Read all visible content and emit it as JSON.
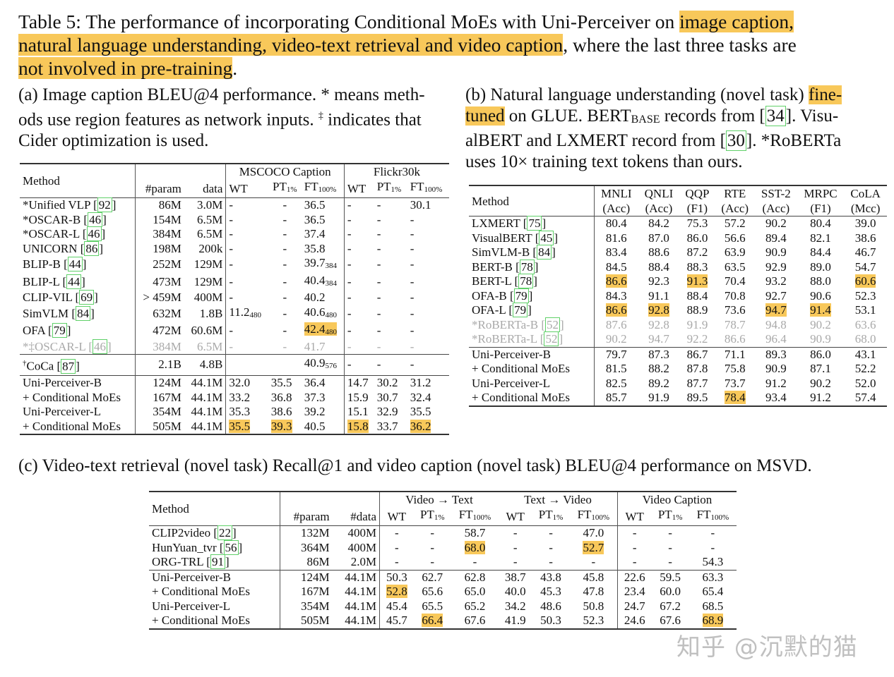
{
  "caption": {
    "prefix": "Table 5: The performance of incorporating Conditional MoEs with Uni-Perceiver on ",
    "highlight1": "image caption,",
    "line2_highlight": "natural language understanding, video-text retrieval and video caption",
    "line2_rest": ", where the last three tasks are",
    "line3_highlight": "not involved in pre-training",
    "line3_rest": "."
  },
  "table_a": {
    "caption_l1": "(a) Image caption BLEU@4 performance. * means meth-",
    "caption_l2a": "ods use region features as network inputs. ",
    "caption_l2_dagger": "‡",
    "caption_l2b": " indicates that",
    "caption_l3": "Cider optimization is used.",
    "headers": {
      "method": "Method",
      "param": "#param",
      "data": "data",
      "group1": "MSCOCO Caption",
      "group2": "Flickr30k",
      "wt": "WT",
      "pt": "PT",
      "pt_sub": "1%",
      "ft": "FT",
      "ft_sub": "100%"
    },
    "rows": [
      {
        "method": "*Unified VLP ",
        "cite": "92",
        "param": "86M",
        "data": "3.0M",
        "c": [
          "-",
          "-",
          "36.5",
          "-",
          "-",
          "30.1"
        ]
      },
      {
        "method": "*OSCAR-B ",
        "cite": "46",
        "param": "154M",
        "data": "6.5M",
        "c": [
          "-",
          "-",
          "36.5",
          "-",
          "-",
          "-"
        ]
      },
      {
        "method": "*OSCAR-L ",
        "cite": "46",
        "param": "384M",
        "data": "6.5M",
        "c": [
          "-",
          "-",
          "37.4",
          "-",
          "-",
          "-"
        ]
      },
      {
        "method": "UNICORN ",
        "cite": "86",
        "param": "198M",
        "data": "200k",
        "c": [
          "-",
          "-",
          "35.8",
          "-",
          "-",
          "-"
        ]
      },
      {
        "method": "BLIP-B ",
        "cite": "44",
        "param": "252M",
        "data": "129M",
        "c": [
          "-",
          "-",
          "39.7",
          "-",
          "-",
          "-"
        ],
        "sub": {
          "2": "384"
        }
      },
      {
        "method": "BLIP-L ",
        "cite": "44",
        "param": "473M",
        "data": "129M",
        "c": [
          "-",
          "-",
          "40.4",
          "-",
          "-",
          "-"
        ],
        "sub": {
          "2": "384"
        }
      },
      {
        "method": "CLIP-VIL ",
        "cite": "69",
        "param": "> 459M",
        "data": "400M",
        "c": [
          "-",
          "-",
          "40.2",
          "-",
          "-",
          "-"
        ]
      },
      {
        "method": "SimVLM ",
        "cite": "84",
        "param": "632M",
        "data": "1.8B",
        "c": [
          "11.2",
          "-",
          "40.6",
          "-",
          "-",
          "-"
        ],
        "sub": {
          "0": "480",
          "2": "480"
        }
      },
      {
        "method": "OFA ",
        "cite": "79",
        "param": "472M",
        "data": "60.6M",
        "c": [
          "-",
          "-",
          "42.4",
          "-",
          "-",
          "-"
        ],
        "sub": {
          "2": "480"
        },
        "hl": [
          2
        ]
      },
      {
        "method": "*‡OSCAR-L ",
        "cite": "46",
        "param": "384M",
        "data": "6.5M",
        "c": [
          "-",
          "-",
          "41.7",
          "-",
          "-",
          "-"
        ],
        "gray": true
      }
    ],
    "coca": {
      "method": "CoCa ",
      "dagger": "†",
      "cite": "87",
      "param": "2.1B",
      "data": "4.8B",
      "c": [
        "",
        "",
        "40.9",
        "-",
        "-",
        "-"
      ],
      "sub": {
        "2": "576"
      }
    },
    "ours": [
      {
        "method": "Uni-Perceiver-B",
        "param": "124M",
        "data": "44.1M",
        "c": [
          "32.0",
          "35.5",
          "36.4",
          "14.7",
          "30.2",
          "31.2"
        ],
        "hl": []
      },
      {
        "method": "+ Conditional MoEs",
        "param": "167M",
        "data": "44.1M",
        "c": [
          "33.2",
          "36.8",
          "37.3",
          "15.9",
          "30.7",
          "32.4"
        ],
        "hl": []
      },
      {
        "method": "Uni-Perceiver-L",
        "param": "354M",
        "data": "44.1M",
        "c": [
          "35.3",
          "38.6",
          "39.2",
          "15.1",
          "32.9",
          "35.5"
        ],
        "hl": []
      },
      {
        "method": "+ Conditional MoEs",
        "param": "505M",
        "data": "44.1M",
        "c": [
          "35.5",
          "39.3",
          "40.5",
          "15.8",
          "33.7",
          "36.2"
        ],
        "hl": [
          0,
          1,
          3,
          5
        ]
      }
    ]
  },
  "table_b": {
    "caption_l1a": "(b) Natural language understanding (novel task) ",
    "caption_l1_hl": "fine-",
    "caption_l2_hl": "tuned",
    "caption_l2a": " on GLUE. BERT",
    "caption_l2_sub": "BASE",
    "caption_l2b": " records from ",
    "caption_l2_cite": "34",
    "caption_l2c": ". Visu-",
    "caption_l3a": "alBERT and LXMERT record from ",
    "caption_l3_cite": "30",
    "caption_l3b": ". *RoBERTa",
    "caption_l4": "uses 10× training text tokens than ours.",
    "headers": {
      "method": "Method",
      "cols": [
        [
          "MNLI",
          "(Acc)"
        ],
        [
          "QNLI",
          "(Acc)"
        ],
        [
          "QQP",
          "(F1)"
        ],
        [
          "RTE",
          "(Acc)"
        ],
        [
          "SST-2",
          "(Acc)"
        ],
        [
          "MRPC",
          "(F1)"
        ],
        [
          "CoLA",
          "(Mcc)"
        ]
      ]
    },
    "rows": [
      {
        "method": "LXMERT ",
        "cite": "75",
        "c": [
          "80.4",
          "84.2",
          "75.3",
          "57.2",
          "90.2",
          "80.4",
          "39.0"
        ],
        "hl": []
      },
      {
        "method": "VisualBERT ",
        "cite": "45",
        "c": [
          "81.6",
          "87.0",
          "86.0",
          "56.6",
          "89.4",
          "82.1",
          "38.6"
        ],
        "hl": []
      },
      {
        "method": "SimVLM-B ",
        "cite": "84",
        "c": [
          "83.4",
          "88.6",
          "87.2",
          "63.9",
          "90.9",
          "84.4",
          "46.7"
        ],
        "hl": []
      },
      {
        "method": "BERT-B ",
        "cite": "78",
        "c": [
          "84.5",
          "88.4",
          "88.3",
          "63.5",
          "92.9",
          "89.0",
          "54.7"
        ],
        "hl": []
      },
      {
        "method": "BERT-L ",
        "cite": "78",
        "c": [
          "86.6",
          "92.3",
          "91.3",
          "70.4",
          "93.2",
          "88.0",
          "60.6"
        ],
        "hl": [
          0,
          2,
          6
        ]
      },
      {
        "method": "OFA-B ",
        "cite": "79",
        "c": [
          "84.3",
          "91.1",
          "88.4",
          "70.8",
          "92.7",
          "90.6",
          "52.3"
        ],
        "hl": []
      },
      {
        "method": "OFA-L ",
        "cite": "79",
        "c": [
          "86.6",
          "92.8",
          "88.9",
          "73.6",
          "94.7",
          "91.4",
          "53.1"
        ],
        "hl": [
          0,
          1,
          4,
          5
        ]
      },
      {
        "method": "*RoBERTa-B ",
        "cite": "52",
        "c": [
          "87.6",
          "92.8",
          "91.9",
          "78.7",
          "94.8",
          "90.2",
          "63.6"
        ],
        "hl": [],
        "gray": true
      },
      {
        "method": "*RoBERTa-L ",
        "cite": "52",
        "c": [
          "90.2",
          "94.7",
          "92.2",
          "86.6",
          "96.4",
          "90.9",
          "68.0"
        ],
        "hl": [],
        "gray": true
      }
    ],
    "ours": [
      {
        "method": "Uni-Perceiver-B",
        "c": [
          "79.7",
          "87.3",
          "86.7",
          "71.1",
          "89.3",
          "86.0",
          "43.1"
        ],
        "hl": []
      },
      {
        "method": "+ Conditional MoEs",
        "c": [
          "81.5",
          "88.2",
          "87.8",
          "75.8",
          "90.9",
          "87.1",
          "52.2"
        ],
        "hl": []
      },
      {
        "method": "Uni-Perceiver-L",
        "c": [
          "82.5",
          "89.2",
          "87.7",
          "73.7",
          "91.2",
          "90.2",
          "52.0"
        ],
        "hl": []
      },
      {
        "method": "+ Conditional MoEs",
        "c": [
          "85.7",
          "91.9",
          "89.5",
          "78.4",
          "93.4",
          "91.2",
          "57.4"
        ],
        "hl": [
          3
        ]
      }
    ]
  },
  "table_c": {
    "caption": "(c) Video-text retrieval (novel task) Recall@1 and video caption (novel task) BLEU@4 performance on MSVD.",
    "headers": {
      "method": "Method",
      "param": "#param",
      "data": "#data",
      "group1": "Video → Text",
      "group2": "Text → Video",
      "group3": "Video Caption",
      "wt": "WT",
      "pt": "PT",
      "pt_sub": "1%",
      "ft": "FT",
      "ft_sub": "100%"
    },
    "rows": [
      {
        "method": "CLIP2video ",
        "cite": "22",
        "param": "132M",
        "data": "400M",
        "c": [
          "-",
          "-",
          "58.7",
          "-",
          "-",
          "47.0",
          "-",
          "-",
          "-"
        ],
        "hl": []
      },
      {
        "method": "HunYuan_tvr ",
        "cite": "56",
        "param": "364M",
        "data": "400M",
        "c": [
          "-",
          "-",
          "68.0",
          "-",
          "-",
          "52.7",
          "-",
          "-",
          "-"
        ],
        "hl": [
          2,
          5
        ]
      },
      {
        "method": "ORG-TRL ",
        "cite": "91",
        "param": "86M",
        "data": "2.0M",
        "c": [
          "-",
          "-",
          "-",
          "-",
          "-",
          "-",
          "-",
          "-",
          "54.3"
        ],
        "hl": []
      }
    ],
    "ours": [
      {
        "method": "Uni-Perceiver-B",
        "param": "124M",
        "data": "44.1M",
        "c": [
          "50.3",
          "62.7",
          "62.8",
          "38.7",
          "43.8",
          "45.8",
          "22.6",
          "59.5",
          "63.3"
        ],
        "hl": []
      },
      {
        "method": "+ Conditional MoEs",
        "param": "167M",
        "data": "44.1M",
        "c": [
          "52.8",
          "65.6",
          "65.0",
          "40.0",
          "45.3",
          "47.8",
          "23.4",
          "60.0",
          "65.4"
        ],
        "hl": [
          0
        ]
      },
      {
        "method": "Uni-Perceiver-L",
        "param": "354M",
        "data": "44.1M",
        "c": [
          "45.4",
          "65.5",
          "65.2",
          "34.2",
          "48.6",
          "50.8",
          "24.7",
          "67.2",
          "68.5"
        ],
        "hl": []
      },
      {
        "method": "+ Conditional MoEs",
        "param": "505M",
        "data": "44.1M",
        "c": [
          "45.7",
          "66.4",
          "67.6",
          "41.9",
          "50.3",
          "52.3",
          "24.6",
          "67.6",
          "68.9"
        ],
        "hl": [
          1,
          8
        ]
      }
    ]
  },
  "watermark": "知乎 @沉默的猫",
  "colors": {
    "highlight": "#f8c85a",
    "cite_border": "#5fd068",
    "gray_text": "#a9a9a9"
  }
}
